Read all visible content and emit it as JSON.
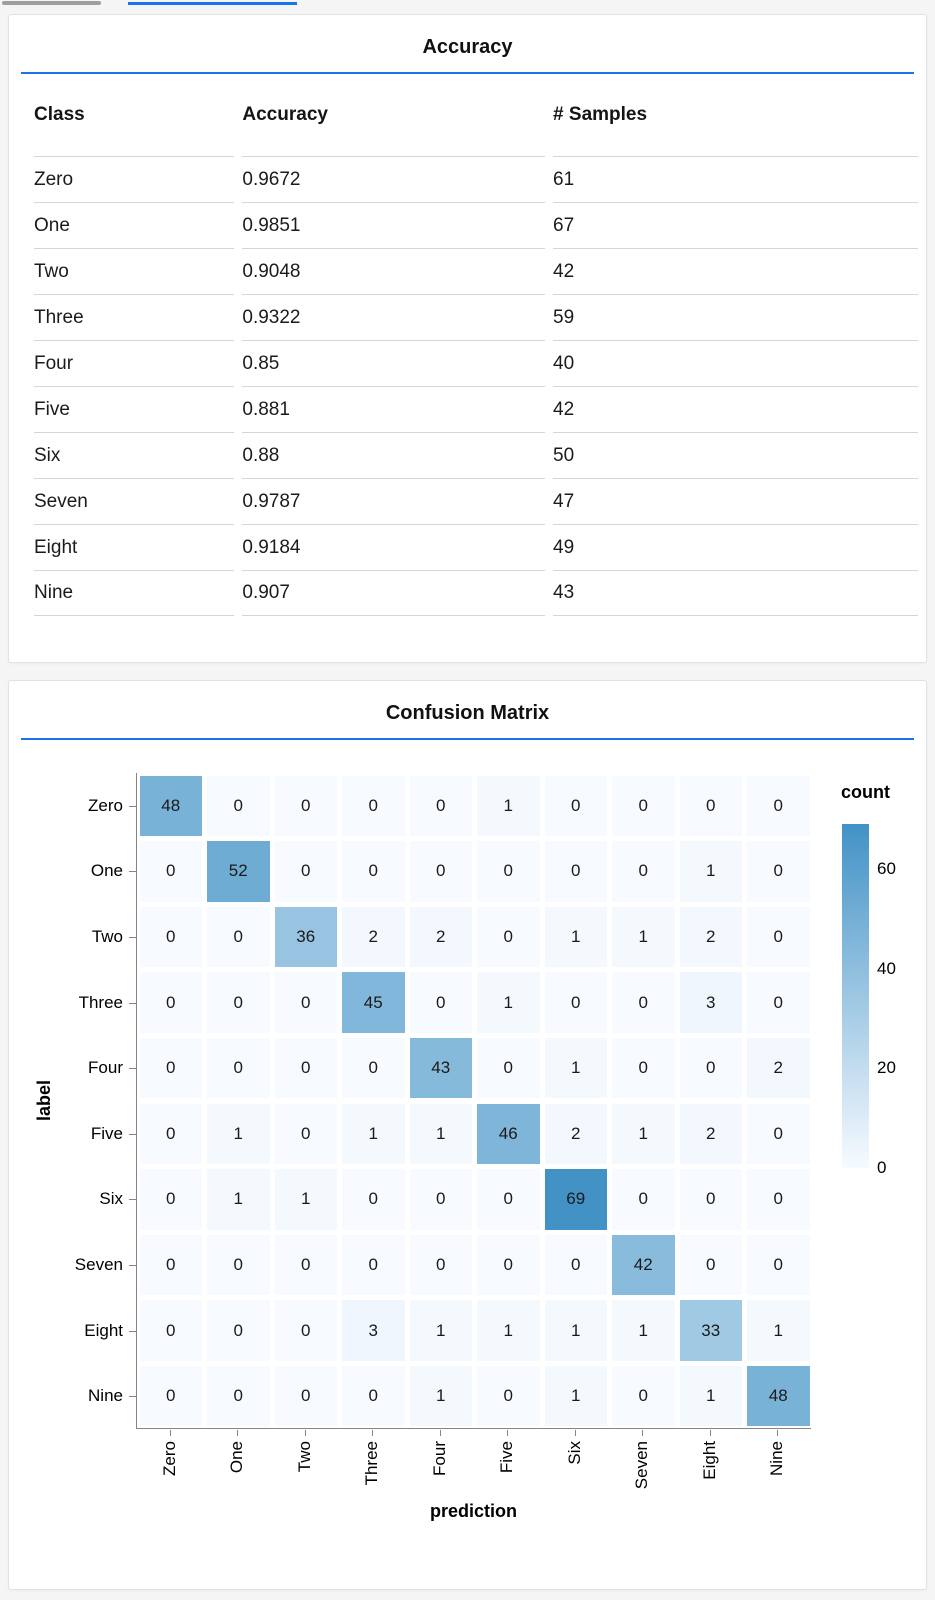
{
  "colors": {
    "accent_blue": "#1a73e8",
    "heat_low": "#f7fbff",
    "heat_high": "#4292c6",
    "axis_gray": "#858585",
    "table_line": "#d6d6d6"
  },
  "chart_data": [
    {
      "type": "table",
      "title": "Accuracy",
      "columns": [
        "Class",
        "Accuracy",
        "# Samples"
      ],
      "rows": [
        [
          "Zero",
          "0.9672",
          "61"
        ],
        [
          "One",
          "0.9851",
          "67"
        ],
        [
          "Two",
          "0.9048",
          "42"
        ],
        [
          "Three",
          "0.9322",
          "59"
        ],
        [
          "Four",
          "0.85",
          "40"
        ],
        [
          "Five",
          "0.881",
          "42"
        ],
        [
          "Six",
          "0.88",
          "50"
        ],
        [
          "Seven",
          "0.9787",
          "47"
        ],
        [
          "Eight",
          "0.9184",
          "49"
        ],
        [
          "Nine",
          "0.907",
          "43"
        ]
      ]
    },
    {
      "type": "heatmap",
      "title": "Confusion Matrix",
      "xlabel": "prediction",
      "ylabel": "label",
      "x_categories": [
        "Zero",
        "One",
        "Two",
        "Three",
        "Four",
        "Five",
        "Six",
        "Seven",
        "Eight",
        "Nine"
      ],
      "y_categories": [
        "Zero",
        "One",
        "Two",
        "Three",
        "Four",
        "Five",
        "Six",
        "Seven",
        "Eight",
        "Nine"
      ],
      "values": [
        [
          48,
          0,
          0,
          0,
          0,
          1,
          0,
          0,
          0,
          0
        ],
        [
          0,
          52,
          0,
          0,
          0,
          0,
          0,
          0,
          1,
          0
        ],
        [
          0,
          0,
          36,
          2,
          2,
          0,
          1,
          1,
          2,
          0
        ],
        [
          0,
          0,
          0,
          45,
          0,
          1,
          0,
          0,
          3,
          0
        ],
        [
          0,
          0,
          0,
          0,
          43,
          0,
          1,
          0,
          0,
          2
        ],
        [
          0,
          1,
          0,
          1,
          1,
          46,
          2,
          1,
          2,
          0
        ],
        [
          0,
          1,
          1,
          0,
          0,
          0,
          69,
          0,
          0,
          0
        ],
        [
          0,
          0,
          0,
          0,
          0,
          0,
          0,
          42,
          0,
          0
        ],
        [
          0,
          0,
          0,
          3,
          1,
          1,
          1,
          1,
          33,
          1
        ],
        [
          0,
          0,
          0,
          0,
          1,
          0,
          1,
          0,
          1,
          48
        ]
      ],
      "color_domain": [
        0,
        69
      ],
      "legend": {
        "title": "count",
        "ticks": [
          60,
          40,
          20,
          0
        ],
        "position": "right"
      },
      "grid": false
    }
  ]
}
